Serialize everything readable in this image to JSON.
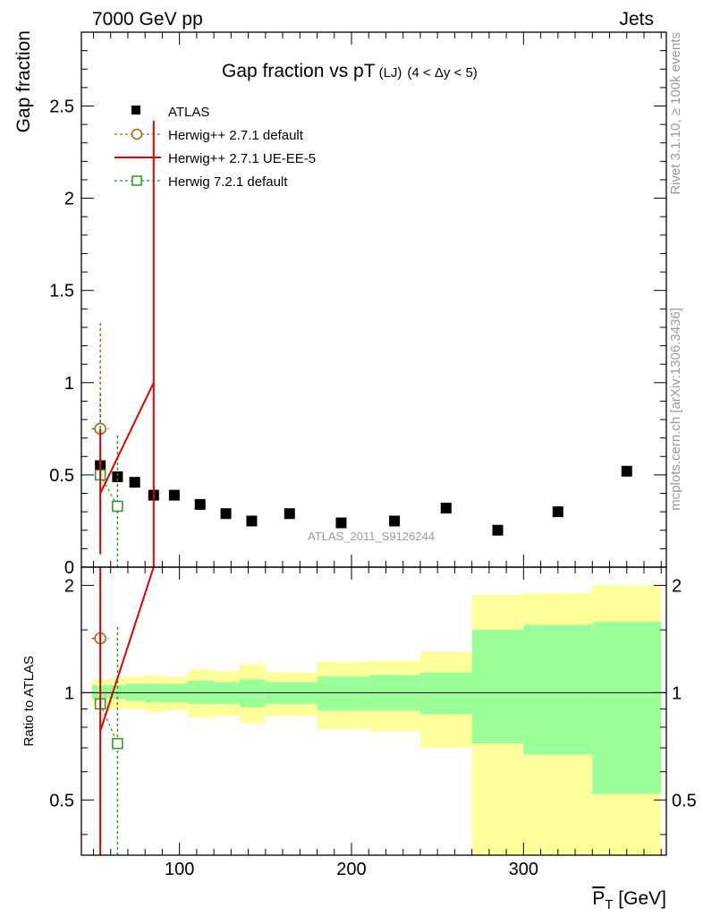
{
  "header": {
    "left": "7000 GeV pp",
    "right": "Jets"
  },
  "side_labels": {
    "rivet": "Rivet 3.1.10, ≥ 100k events",
    "mcplots": "mcplots.cern.ch [arXiv:1306.3436]"
  },
  "chart_data": {
    "type": "scatter",
    "title": "Gap fraction vs pT",
    "title_sub": "(LJ)",
    "title_cut": "(4 < Δy < 5)",
    "analysis_tag": "ATLAS_2011_S9126244",
    "xlabel": "P_T [GeV]",
    "x_tick_labels": [
      "100",
      "200",
      "300"
    ],
    "xlim": [
      43,
      383
    ],
    "main": {
      "ylabel": "Gap fraction",
      "ylim": [
        0,
        2.9
      ],
      "y_tick_labels": [
        "0",
        "0.5",
        "1",
        "1.5",
        "2",
        "2.5"
      ],
      "y_ticks": [
        0,
        0.5,
        1,
        1.5,
        2,
        2.5
      ]
    },
    "ratio": {
      "ylabel": "Ratio to ATLAS",
      "ylim": [
        0.35,
        2.25
      ],
      "y_tick_labels": [
        "0.5",
        "1",
        "2"
      ],
      "y_ticks": [
        0.5,
        1,
        2
      ]
    },
    "legend": [
      {
        "name": "ATLAS",
        "style": "data"
      },
      {
        "name": "Herwig++ 2.7.1 default",
        "style": "circle-dashed"
      },
      {
        "name": "Herwig++ 2.7.1 UE-EE-5",
        "style": "line-solid"
      },
      {
        "name": "Herwig 7.2.1 default",
        "style": "square-dashed"
      }
    ],
    "series": [
      {
        "name": "ATLAS",
        "color": "#000000",
        "x": [
          54,
          64,
          74,
          85,
          97,
          112,
          127,
          142,
          164,
          194,
          225,
          255,
          285,
          320,
          360
        ],
        "y": [
          0.55,
          0.49,
          0.46,
          0.39,
          0.39,
          0.34,
          0.29,
          0.25,
          0.29,
          0.24,
          0.25,
          0.32,
          0.2,
          0.3,
          0.52
        ]
      },
      {
        "name": "Herwig++ 2.7.1 default",
        "color": "#b35a00",
        "x": [
          54
        ],
        "y": [
          0.75
        ],
        "yerr": [
          [
            0.35,
            1.33
          ]
        ],
        "xerr": [
          [
            49,
            59
          ]
        ],
        "ratio": [
          1.42
        ],
        "ratio_err": [
          [
            0.35,
            2.3
          ]
        ]
      },
      {
        "name": "Herwig++ 2.7.1 UE-EE-5",
        "color": "#e00000",
        "x": [
          54,
          85
        ],
        "y": [
          0.4,
          1.0
        ],
        "yerr_bar": [
          [
            54,
            0.07,
            0.75
          ],
          [
            85,
            0.0,
            2.42
          ]
        ],
        "ratio": [
          0.78,
          2.25
        ]
      },
      {
        "name": "Herwig 7.2.1 default",
        "color": "#229922",
        "x": [
          54,
          64
        ],
        "y": [
          0.5,
          0.33
        ],
        "yerr": [
          [
            0.17,
            0.94
          ],
          [
            0.0,
            0.72
          ]
        ],
        "ratio": [
          0.93,
          0.72
        ],
        "ratio_err": [
          [
            0.35,
            1.75
          ],
          [
            0.35,
            1.55
          ]
        ]
      }
    ],
    "bands": {
      "green_color": "#99ff99",
      "yellow_color": "#ffff99",
      "bins": [
        {
          "x": [
            49,
            59
          ],
          "green": [
            0.96,
            1.05
          ],
          "yellow": [
            0.91,
            1.09
          ]
        },
        {
          "x": [
            59,
            69
          ],
          "green": [
            0.96,
            1.05
          ],
          "yellow": [
            0.9,
            1.1
          ]
        },
        {
          "x": [
            69,
            80
          ],
          "green": [
            0.95,
            1.06
          ],
          "yellow": [
            0.9,
            1.11
          ]
        },
        {
          "x": [
            80,
            90
          ],
          "green": [
            0.94,
            1.06
          ],
          "yellow": [
            0.88,
            1.12
          ]
        },
        {
          "x": [
            90,
            105
          ],
          "green": [
            0.94,
            1.06
          ],
          "yellow": [
            0.89,
            1.11
          ]
        },
        {
          "x": [
            105,
            120
          ],
          "green": [
            0.93,
            1.08
          ],
          "yellow": [
            0.85,
            1.16
          ]
        },
        {
          "x": [
            120,
            135
          ],
          "green": [
            0.93,
            1.07
          ],
          "yellow": [
            0.86,
            1.15
          ]
        },
        {
          "x": [
            135,
            150
          ],
          "green": [
            0.91,
            1.09
          ],
          "yellow": [
            0.82,
            1.2
          ]
        },
        {
          "x": [
            150,
            180
          ],
          "green": [
            0.93,
            1.07
          ],
          "yellow": [
            0.86,
            1.14
          ]
        },
        {
          "x": [
            180,
            210
          ],
          "green": [
            0.89,
            1.11
          ],
          "yellow": [
            0.79,
            1.22
          ]
        },
        {
          "x": [
            210,
            240
          ],
          "green": [
            0.89,
            1.12
          ],
          "yellow": [
            0.78,
            1.23
          ]
        },
        {
          "x": [
            240,
            270
          ],
          "green": [
            0.87,
            1.14
          ],
          "yellow": [
            0.7,
            1.3
          ]
        },
        {
          "x": [
            270,
            300
          ],
          "green": [
            0.72,
            1.5
          ],
          "yellow": [
            0.35,
            1.88
          ]
        },
        {
          "x": [
            300,
            340
          ],
          "green": [
            0.67,
            1.55
          ],
          "yellow": [
            0.35,
            1.9
          ]
        },
        {
          "x": [
            340,
            380
          ],
          "green": [
            0.52,
            1.58
          ],
          "yellow": [
            0.35,
            2.0
          ]
        }
      ]
    }
  }
}
